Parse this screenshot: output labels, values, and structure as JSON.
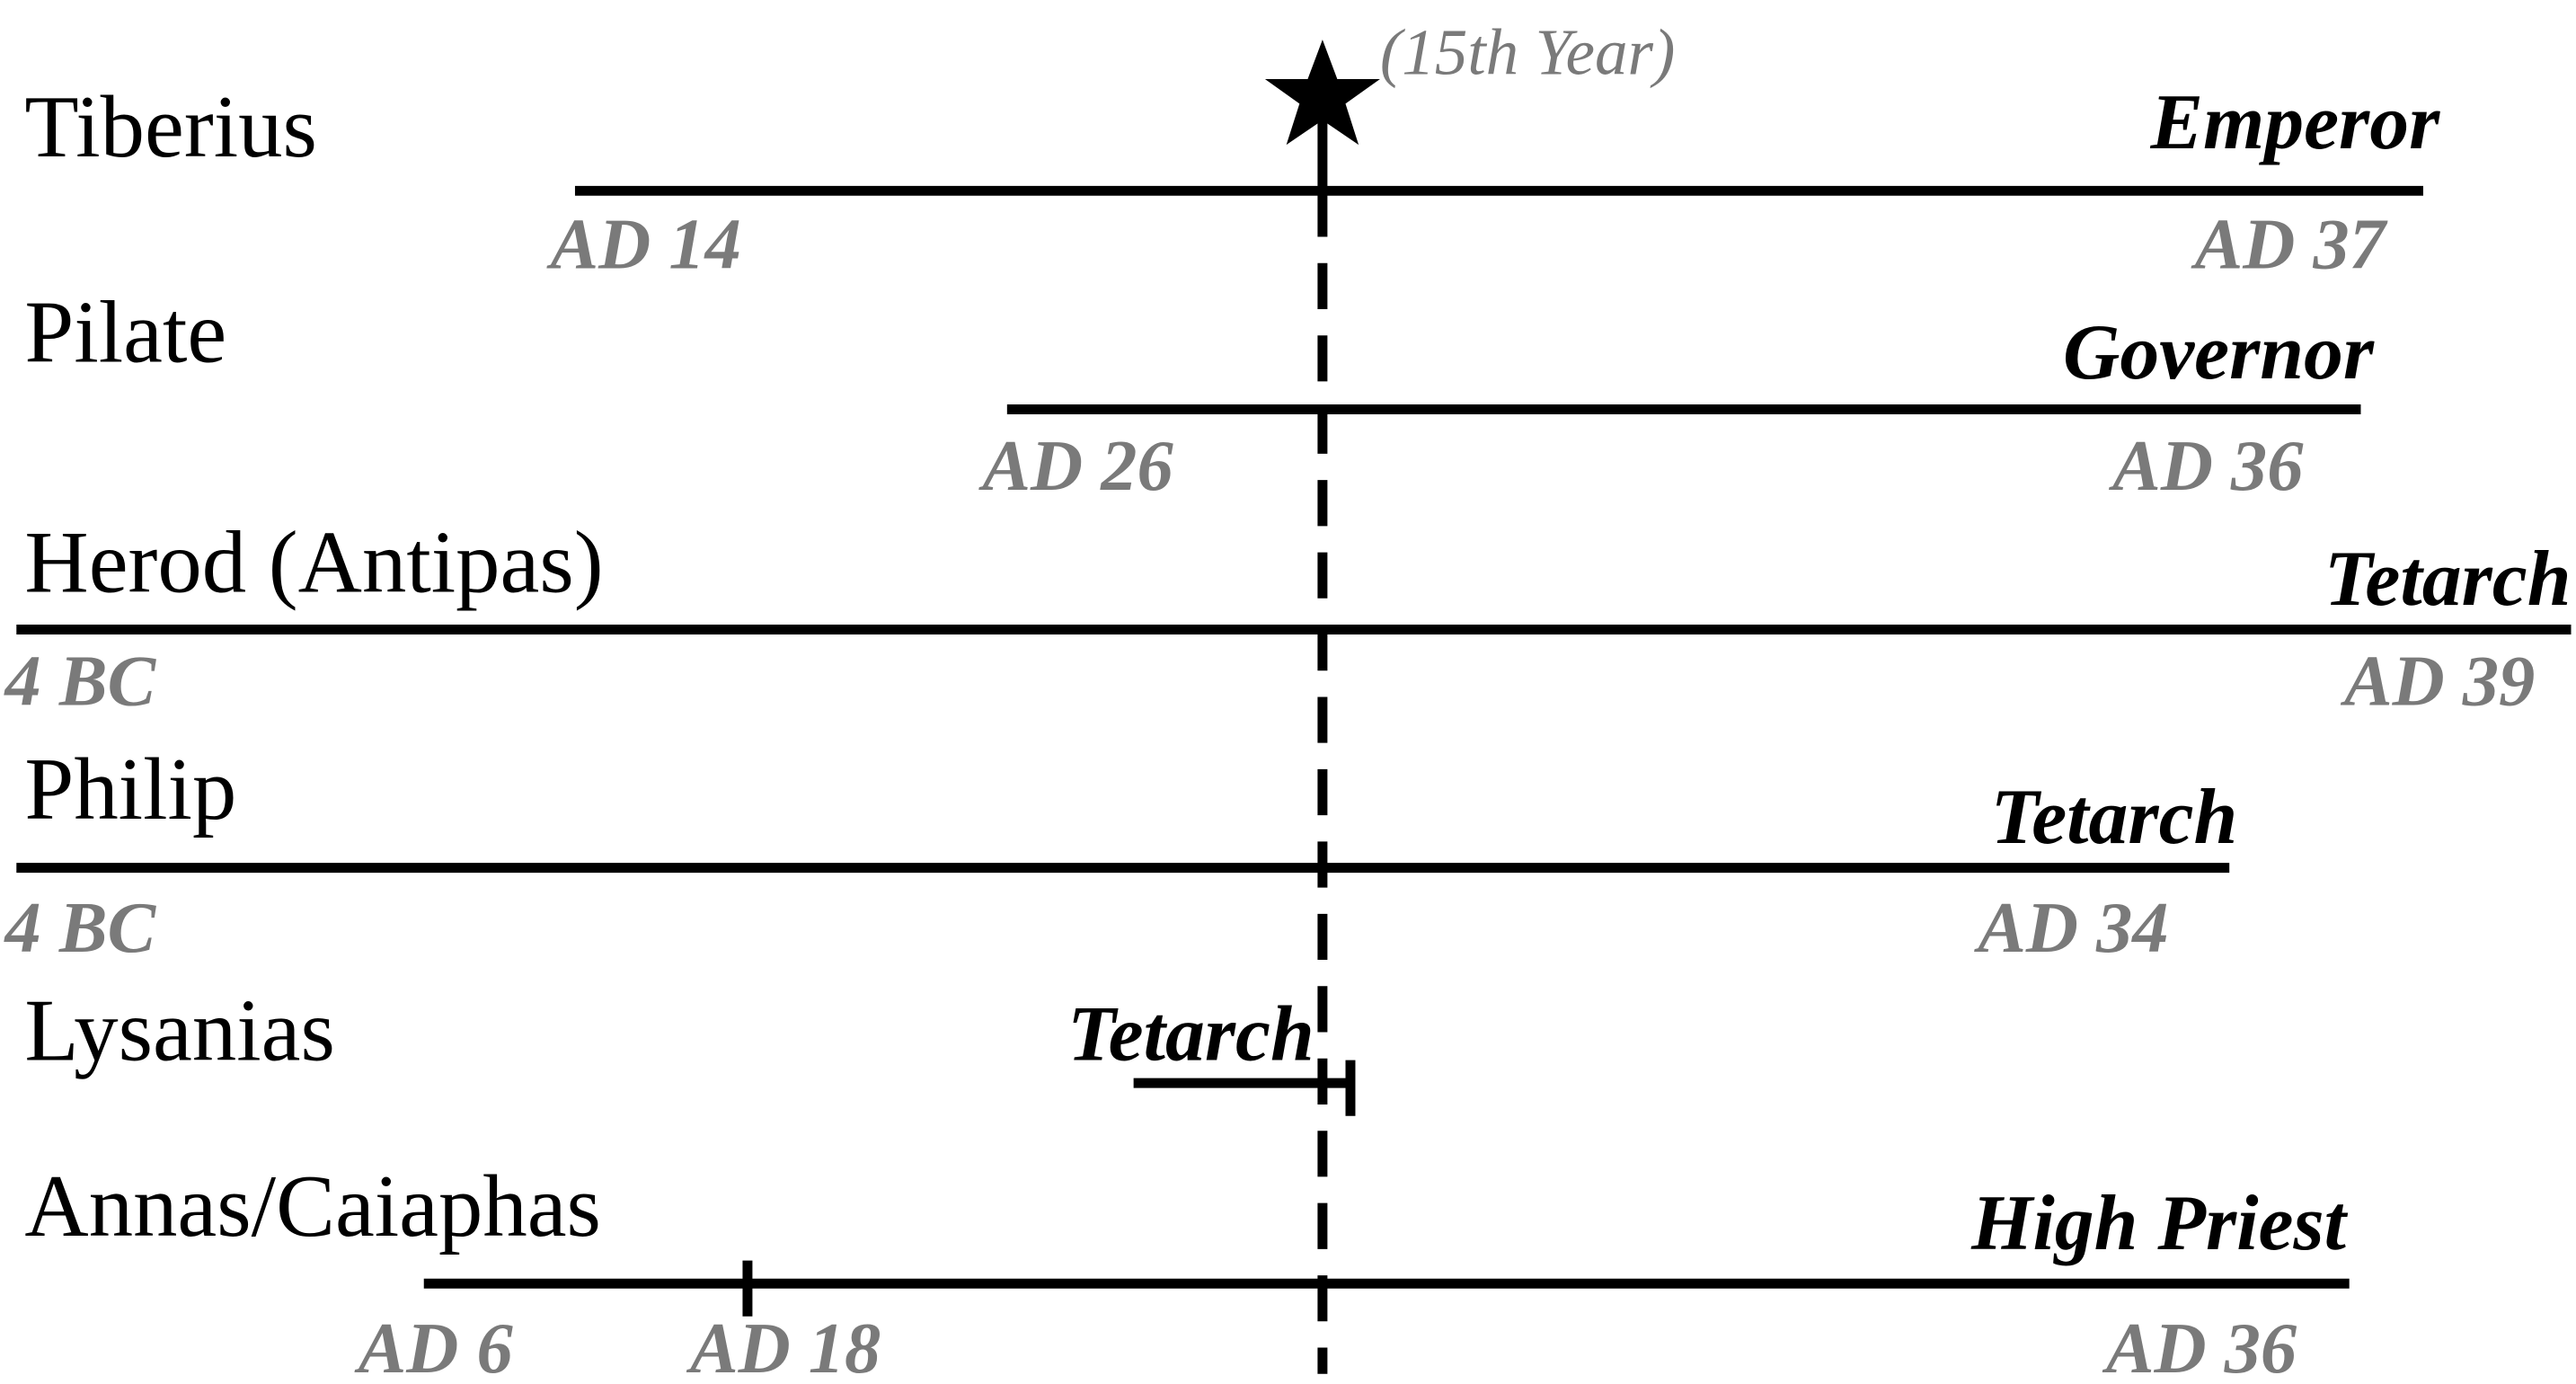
{
  "annotation": "(15th Year)",
  "rows": [
    {
      "name": "Tiberius",
      "role": "Emperor",
      "dates": [
        "AD 14",
        "AD 37"
      ]
    },
    {
      "name": "Pilate",
      "role": "Governor",
      "dates": [
        "AD 26",
        "AD 36"
      ]
    },
    {
      "name": "Herod (Antipas)",
      "role": "Tetarch",
      "dates": [
        "4 BC",
        "AD 39"
      ]
    },
    {
      "name": "Philip",
      "role": "Tetarch",
      "dates": [
        "4 BC",
        "AD 34"
      ]
    },
    {
      "name": "Lysanias",
      "role": "Tetarch",
      "dates": []
    },
    {
      "name": "Annas/Caiaphas",
      "role": "High Priest",
      "dates": [
        "AD 6",
        "AD 18",
        "AD 36"
      ]
    }
  ]
}
